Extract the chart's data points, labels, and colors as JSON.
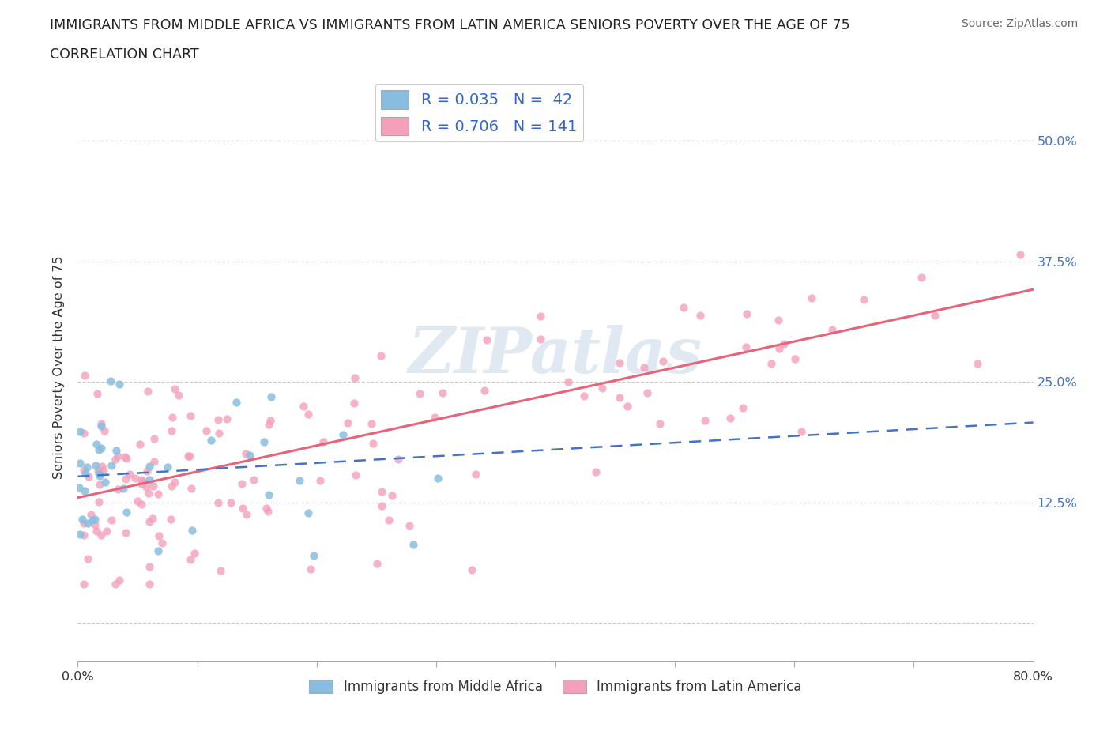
{
  "title": "IMMIGRANTS FROM MIDDLE AFRICA VS IMMIGRANTS FROM LATIN AMERICA SENIORS POVERTY OVER THE AGE OF 75",
  "subtitle": "CORRELATION CHART",
  "source": "Source: ZipAtlas.com",
  "ylabel": "Seniors Poverty Over the Age of 75",
  "xlim": [
    0.0,
    0.8
  ],
  "ylim": [
    -0.04,
    0.57
  ],
  "xticks": [
    0.0,
    0.1,
    0.2,
    0.3,
    0.4,
    0.5,
    0.6,
    0.7,
    0.8
  ],
  "xticklabels": [
    "0.0%",
    "",
    "",
    "",
    "",
    "",
    "",
    "",
    "80.0%"
  ],
  "yticks": [
    0.0,
    0.125,
    0.25,
    0.375,
    0.5
  ],
  "yticklabels": [
    "",
    "12.5%",
    "25.0%",
    "37.5%",
    "50.0%"
  ],
  "blue_R": 0.035,
  "blue_N": 42,
  "pink_R": 0.706,
  "pink_N": 141,
  "blue_color": "#89bde0",
  "pink_color": "#f4a0bb",
  "blue_line_color": "#4472c4",
  "pink_line_color": "#e8637a",
  "watermark_text": "ZIPatlas",
  "legend_label_blue": "Immigrants from Middle Africa",
  "legend_label_pink": "Immigrants from Latin America",
  "grid_color": "#c8c8c8",
  "bg_color": "#ffffff",
  "blue_legend_color": "#89bde0",
  "pink_legend_color": "#f4a0bb"
}
